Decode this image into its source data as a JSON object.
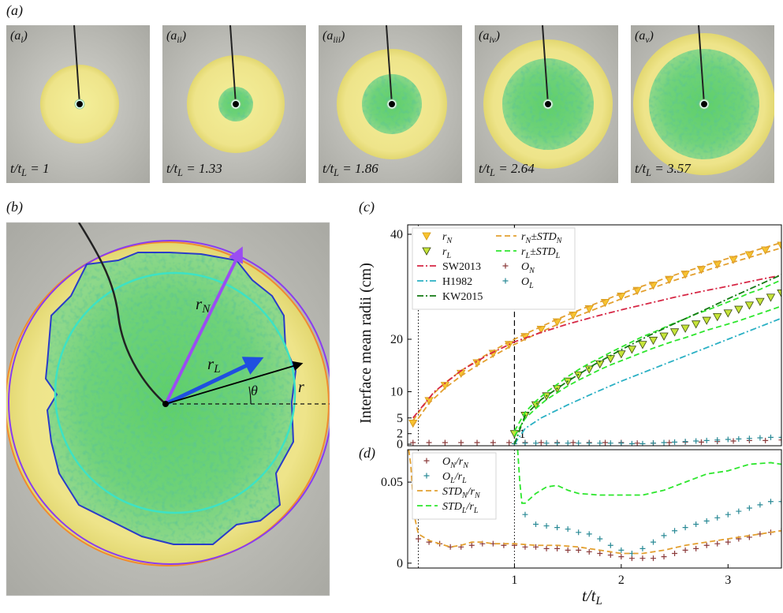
{
  "figure": {
    "panel_a": {
      "label": "(a)",
      "images": [
        {
          "label": [
            "(a",
            "i",
            ")"
          ],
          "time": [
            "t/t",
            "L",
            " = 1"
          ]
        },
        {
          "label": [
            "(a",
            "ii",
            ")"
          ],
          "time": [
            "t/t",
            "L",
            " = 1.33"
          ]
        },
        {
          "label": [
            "(a",
            "iii",
            ")"
          ],
          "time": [
            "t/t",
            "L",
            " = 1.86"
          ]
        },
        {
          "label": [
            "(a",
            "iv",
            ")"
          ],
          "time": [
            "t/t",
            "L",
            " = 2.64"
          ]
        },
        {
          "label": [
            "(a",
            "v",
            ")"
          ],
          "time": [
            "t/t",
            "L",
            " = 3.57"
          ]
        }
      ]
    },
    "panel_b": {
      "label": "(b)",
      "annotations": {
        "r_N": [
          "r",
          "N"
        ],
        "r_L": [
          "r",
          "L"
        ],
        "r": "r",
        "theta": "θ"
      }
    }
  },
  "chart_data": [
    {
      "type": "line",
      "panel_label": "(c)",
      "y_label": "Interface mean radii (cm)",
      "xlim": [
        0,
        3.5
      ],
      "xticks": [
        1
      ],
      "ylim": [
        -0.3,
        41.8
      ],
      "yticks": [
        0,
        2,
        5,
        10,
        20,
        40
      ],
      "vlines": [
        {
          "x": 0.1,
          "style": "dotted"
        },
        {
          "x": 1,
          "style": "dashed"
        }
      ],
      "legend": {
        "position": "upper left",
        "columns": 2
      },
      "series": [
        {
          "name": [
            "r",
            "N"
          ],
          "marker": "triangle-down",
          "color": "#f7c330",
          "edge": "#d49a18",
          "x": [
            0.05,
            0.2,
            0.35,
            0.5,
            0.65,
            0.8,
            0.95,
            1.1,
            1.25,
            1.4,
            1.55,
            1.7,
            1.85,
            2.0,
            2.15,
            2.3,
            2.45,
            2.6,
            2.75,
            2.9,
            3.05,
            3.2,
            3.35,
            3.5
          ],
          "values": [
            4.0,
            8.3,
            11.2,
            13.5,
            15.5,
            17.3,
            19.0,
            20.5,
            21.9,
            23.3,
            24.6,
            25.8,
            27.0,
            28.2,
            29.3,
            30.3,
            31.4,
            32.4,
            33.3,
            34.3,
            35.2,
            36.1,
            37.0,
            37.9
          ]
        },
        {
          "name": [
            "r",
            "N",
            "±STD",
            "N"
          ],
          "line": "dashed",
          "color": "#e3a030",
          "x": [
            0.05,
            0.2,
            0.35,
            0.5,
            0.65,
            0.8,
            0.95,
            1.1,
            1.25,
            1.4,
            1.55,
            1.7,
            1.85,
            2.0,
            2.15,
            2.3,
            2.45,
            2.6,
            2.75,
            2.9,
            3.05,
            3.2,
            3.35,
            3.5
          ],
          "upper": [
            4.5,
            8.8,
            11.7,
            14.0,
            16.0,
            17.8,
            19.5,
            21.0,
            22.4,
            23.8,
            25.1,
            26.3,
            27.5,
            28.7,
            29.8,
            30.8,
            31.9,
            32.9,
            33.8,
            34.8,
            35.7,
            36.6,
            37.5,
            38.4
          ],
          "lower": [
            3.5,
            7.8,
            10.7,
            13.0,
            15.0,
            16.8,
            18.5,
            20.0,
            21.4,
            22.8,
            24.1,
            25.3,
            26.5,
            27.7,
            28.8,
            29.8,
            30.9,
            31.9,
            32.8,
            33.8,
            34.7,
            35.6,
            36.5,
            37.4
          ]
        },
        {
          "name": [
            "r",
            "L"
          ],
          "marker": "triangle-down",
          "color": "#c6e43a",
          "edge": "#3a4a10",
          "x": [
            1.0,
            1.1,
            1.2,
            1.3,
            1.4,
            1.5,
            1.6,
            1.7,
            1.8,
            1.9,
            2.0,
            2.1,
            2.2,
            2.3,
            2.4,
            2.5,
            2.6,
            2.7,
            2.8,
            2.9,
            3.0,
            3.1,
            3.2,
            3.3,
            3.4,
            3.5
          ],
          "values": [
            2,
            5.5,
            7.5,
            9.2,
            10.6,
            12,
            13.2,
            14.3,
            15.3,
            16.3,
            17.2,
            18.1,
            19.0,
            19.8,
            20.6,
            21.4,
            22.1,
            22.9,
            23.6,
            24.3,
            25.0,
            25.7,
            26.5,
            27.2,
            28.0,
            28.8
          ]
        },
        {
          "name": [
            "r",
            "L",
            "±STD",
            "L"
          ],
          "line": "dashed",
          "color": "#2ee62e",
          "x": [
            1.0,
            1.1,
            1.2,
            1.3,
            1.4,
            1.5,
            1.6,
            1.7,
            1.8,
            1.9,
            2.0,
            2.1,
            2.2,
            2.3,
            2.4,
            2.5,
            2.6,
            2.7,
            2.8,
            2.9,
            3.0,
            3.1,
            3.2,
            3.3,
            3.4,
            3.5
          ],
          "upper": [
            2.5,
            6.1,
            8.2,
            9.9,
            11.4,
            12.9,
            14.2,
            15.4,
            16.4,
            17.5,
            18.5,
            19.5,
            20.5,
            21.3,
            22.2,
            23.1,
            23.9,
            24.8,
            25.5,
            26.3,
            27.1,
            27.9,
            28.8,
            29.5,
            30.4,
            31.3
          ],
          "lower": [
            1.5,
            4.9,
            6.8,
            8.5,
            9.8,
            11.1,
            12.2,
            13.2,
            14.2,
            15.1,
            15.9,
            16.7,
            17.5,
            18.3,
            19.0,
            19.7,
            20.3,
            21.0,
            21.7,
            22.3,
            22.9,
            23.5,
            24.2,
            24.9,
            25.6,
            26.3
          ]
        },
        {
          "name": "SW2013",
          "line": "dashdot",
          "color": "#d62745",
          "x": [
            0.05,
            0.25,
            0.5,
            0.75,
            1,
            1.25,
            1.5,
            1.75,
            2,
            2.25,
            2.5,
            2.75,
            3,
            3.25,
            3.5
          ],
          "values": [
            5,
            10,
            14,
            17,
            19.5,
            21.3,
            22.9,
            24.3,
            25.6,
            26.8,
            28,
            29.1,
            30.1,
            31.2,
            32.2
          ]
        },
        {
          "name": [
            "O",
            "N"
          ],
          "marker": "plus",
          "color": "#8b3a3a",
          "x": [
            0.05,
            0.2,
            0.35,
            0.5,
            0.65,
            0.8,
            0.95,
            1.1,
            1.25,
            1.4,
            1.55,
            1.7,
            1.85,
            2.0,
            2.15,
            2.3,
            2.45,
            2.6,
            2.75,
            2.9,
            3.05,
            3.2,
            3.35,
            3.5
          ],
          "values": [
            0.3,
            0.3,
            0.3,
            0.3,
            0.3,
            0.3,
            0.3,
            0.3,
            0.3,
            0.3,
            0.3,
            0.3,
            0.3,
            0.3,
            0.2,
            0.2,
            0.3,
            0.4,
            0.4,
            0.5,
            0.6,
            0.7,
            0.7,
            0.8
          ]
        },
        {
          "name": "H1982",
          "line": "dashdot",
          "color": "#2ab0c4",
          "x": [
            1.0,
            1.1,
            1.25,
            1.5,
            1.75,
            2,
            2.25,
            2.5,
            2.75,
            3,
            3.25,
            3.5
          ],
          "values": [
            0,
            3,
            5,
            7.5,
            9.8,
            12,
            14,
            16,
            18,
            20,
            22,
            24
          ]
        },
        {
          "name": [
            "O",
            "L"
          ],
          "marker": "plus",
          "color": "#2a8a96",
          "x": [
            1.0,
            1.1,
            1.2,
            1.3,
            1.4,
            1.5,
            1.6,
            1.7,
            1.8,
            1.9,
            2.0,
            2.1,
            2.2,
            2.3,
            2.4,
            2.5,
            2.6,
            2.7,
            2.8,
            2.9,
            3.0,
            3.1,
            3.2,
            3.3,
            3.4,
            3.5
          ],
          "values": [
            0.1,
            0.2,
            0.2,
            0.2,
            0.2,
            0.2,
            0.2,
            0.2,
            0.2,
            0.2,
            0.2,
            0.1,
            0.1,
            0.2,
            0.3,
            0.4,
            0.5,
            0.6,
            0.7,
            0.8,
            0.9,
            1.0,
            1.1,
            1.2,
            1.3,
            1.3
          ]
        },
        {
          "name": "KW2015",
          "line": "dashdot",
          "color": "#137a13",
          "x": [
            1.0,
            1.1,
            1.25,
            1.5,
            1.75,
            2,
            2.25,
            2.5,
            2.75,
            3,
            3.25,
            3.5
          ],
          "values": [
            0,
            5.5,
            8.5,
            12,
            15.2,
            18,
            20.6,
            23,
            25.3,
            27.7,
            30,
            32.3
          ]
        }
      ]
    },
    {
      "type": "line",
      "panel_label": "(d)",
      "x_label": [
        "t/t",
        "L"
      ],
      "xlim": [
        0,
        3.5
      ],
      "xticks": [
        1,
        2,
        3
      ],
      "ylim": [
        -0.003,
        0.07
      ],
      "yticks": [
        0,
        0.05
      ],
      "vlines": [
        {
          "x": 0.1,
          "style": "dotted"
        },
        {
          "x": 1,
          "style": "dotted"
        }
      ],
      "legend": {
        "position": "upper left",
        "columns": 1
      },
      "series": [
        {
          "name": [
            "O",
            "N",
            "/r",
            "N"
          ],
          "marker": "plus",
          "color": "#8b3a3a",
          "x": [
            0.1,
            0.2,
            0.3,
            0.4,
            0.5,
            0.6,
            0.7,
            0.8,
            0.9,
            1.0,
            1.1,
            1.2,
            1.3,
            1.4,
            1.5,
            1.6,
            1.7,
            1.8,
            1.9,
            2.0,
            2.1,
            2.2,
            2.3,
            2.4,
            2.5,
            2.6,
            2.7,
            2.8,
            2.9,
            3.0,
            3.1,
            3.2,
            3.3,
            3.4,
            3.5
          ],
          "values": [
            0.015,
            0.013,
            0.012,
            0.01,
            0.01,
            0.011,
            0.012,
            0.012,
            0.011,
            0.011,
            0.01,
            0.01,
            0.009,
            0.009,
            0.008,
            0.008,
            0.007,
            0.006,
            0.005,
            0.004,
            0.003,
            0.003,
            0.003,
            0.004,
            0.006,
            0.008,
            0.009,
            0.011,
            0.012,
            0.013,
            0.015,
            0.016,
            0.018,
            0.019,
            0.02
          ]
        },
        {
          "name": [
            "O",
            "L",
            "/r",
            "L"
          ],
          "marker": "plus",
          "color": "#2a8a96",
          "x": [
            1.1,
            1.2,
            1.3,
            1.4,
            1.5,
            1.6,
            1.7,
            1.8,
            1.9,
            2.0,
            2.1,
            2.2,
            2.3,
            2.4,
            2.5,
            2.6,
            2.7,
            2.8,
            2.9,
            3.0,
            3.1,
            3.2,
            3.3,
            3.4,
            3.5
          ],
          "values": [
            0.03,
            0.024,
            0.023,
            0.022,
            0.021,
            0.019,
            0.018,
            0.015,
            0.011,
            0.008,
            0.006,
            0.009,
            0.013,
            0.017,
            0.02,
            0.022,
            0.024,
            0.026,
            0.028,
            0.03,
            0.032,
            0.034,
            0.036,
            0.038,
            0.038
          ]
        },
        {
          "name": [
            "STD",
            "N",
            "/r",
            "N"
          ],
          "line": "dashed",
          "color": "#e3a030",
          "x": [
            0.01,
            0.03,
            0.06,
            0.1,
            0.2,
            0.3,
            0.4,
            0.5,
            0.6,
            0.7,
            0.8,
            0.9,
            1.0,
            1.2,
            1.4,
            1.6,
            1.8,
            2.0,
            2.2,
            2.4,
            2.6,
            2.8,
            3.0,
            3.2,
            3.4,
            3.5
          ],
          "values": [
            0.07,
            0.06,
            0.03,
            0.018,
            0.014,
            0.012,
            0.01,
            0.011,
            0.013,
            0.013,
            0.012,
            0.012,
            0.012,
            0.011,
            0.011,
            0.01,
            0.008,
            0.006,
            0.006,
            0.008,
            0.011,
            0.013,
            0.015,
            0.017,
            0.019,
            0.02
          ]
        },
        {
          "name": [
            "STD",
            "L",
            "/r",
            "L"
          ],
          "line": "dashed",
          "color": "#2ee62e",
          "x": [
            1.03,
            1.05,
            1.07,
            1.1,
            1.2,
            1.3,
            1.4,
            1.5,
            1.6,
            1.8,
            2.0,
            2.2,
            2.4,
            2.6,
            2.8,
            3.0,
            3.2,
            3.4,
            3.5
          ],
          "values": [
            0.07,
            0.05,
            0.037,
            0.037,
            0.043,
            0.047,
            0.048,
            0.045,
            0.043,
            0.042,
            0.042,
            0.042,
            0.045,
            0.05,
            0.055,
            0.057,
            0.061,
            0.062,
            0.061
          ]
        }
      ]
    }
  ]
}
